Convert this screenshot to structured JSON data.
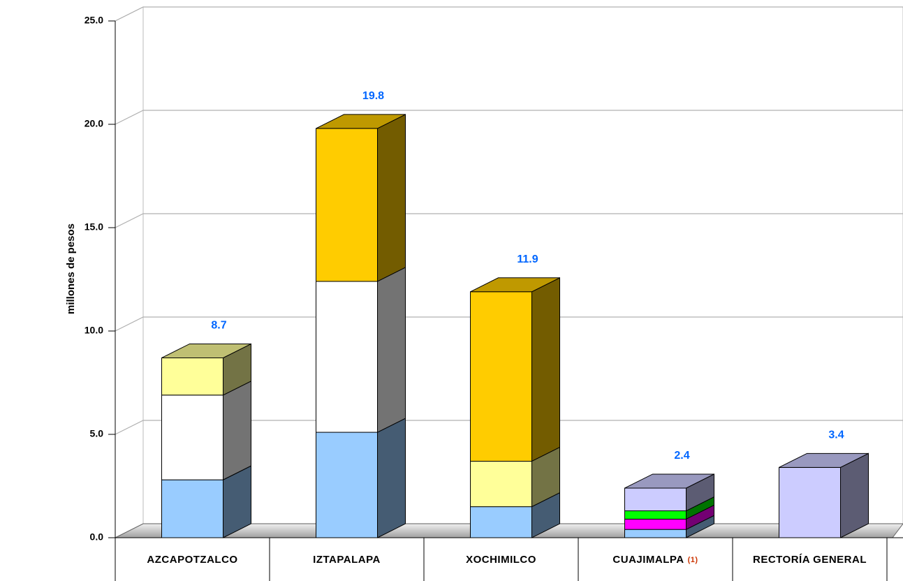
{
  "chart_data": {
    "type": "bar3d-stacked",
    "y_label": "millones de pesos",
    "categories": [
      "AZCAPOTZALCO",
      "IZTAPALAPA",
      "XOCHIMILCO",
      "CUAJIMALPA",
      "RECTORÍA GENERAL"
    ],
    "annotation": "(1)",
    "annotation_color": "#cc3300",
    "series": [
      {
        "color": "#99ccff",
        "values": [
          2.8,
          5.1,
          1.5,
          0.4,
          null
        ]
      },
      {
        "color": "#ffffff",
        "values": [
          4.1,
          7.3,
          null,
          null,
          null
        ]
      },
      {
        "color": "#ffff99",
        "values": [
          1.8,
          null,
          2.2,
          null,
          null
        ]
      },
      {
        "color": "#ffcc00",
        "values": [
          null,
          7.4,
          8.2,
          null,
          null
        ]
      },
      {
        "color": "#ff00ff",
        "values": [
          null,
          null,
          null,
          0.5,
          null
        ]
      },
      {
        "color": "#00ff00",
        "values": [
          null,
          null,
          null,
          0.4,
          null
        ]
      },
      {
        "color": "#ccccff",
        "values": [
          null,
          null,
          null,
          1.1,
          3.4
        ]
      }
    ],
    "totals": [
      8.7,
      19.8,
      11.9,
      2.4,
      3.4
    ],
    "totals_color": "#0066ff",
    "ylim": [
      0,
      25
    ],
    "yticks": [
      {
        "value": 0,
        "label": "0.0"
      },
      {
        "value": 5,
        "label": "5.0"
      },
      {
        "value": 10,
        "label": "10.0"
      },
      {
        "value": 15,
        "label": "15.0"
      },
      {
        "value": 20,
        "label": "20.0"
      },
      {
        "value": 25,
        "label": "25.0"
      }
    ],
    "grid": true
  }
}
